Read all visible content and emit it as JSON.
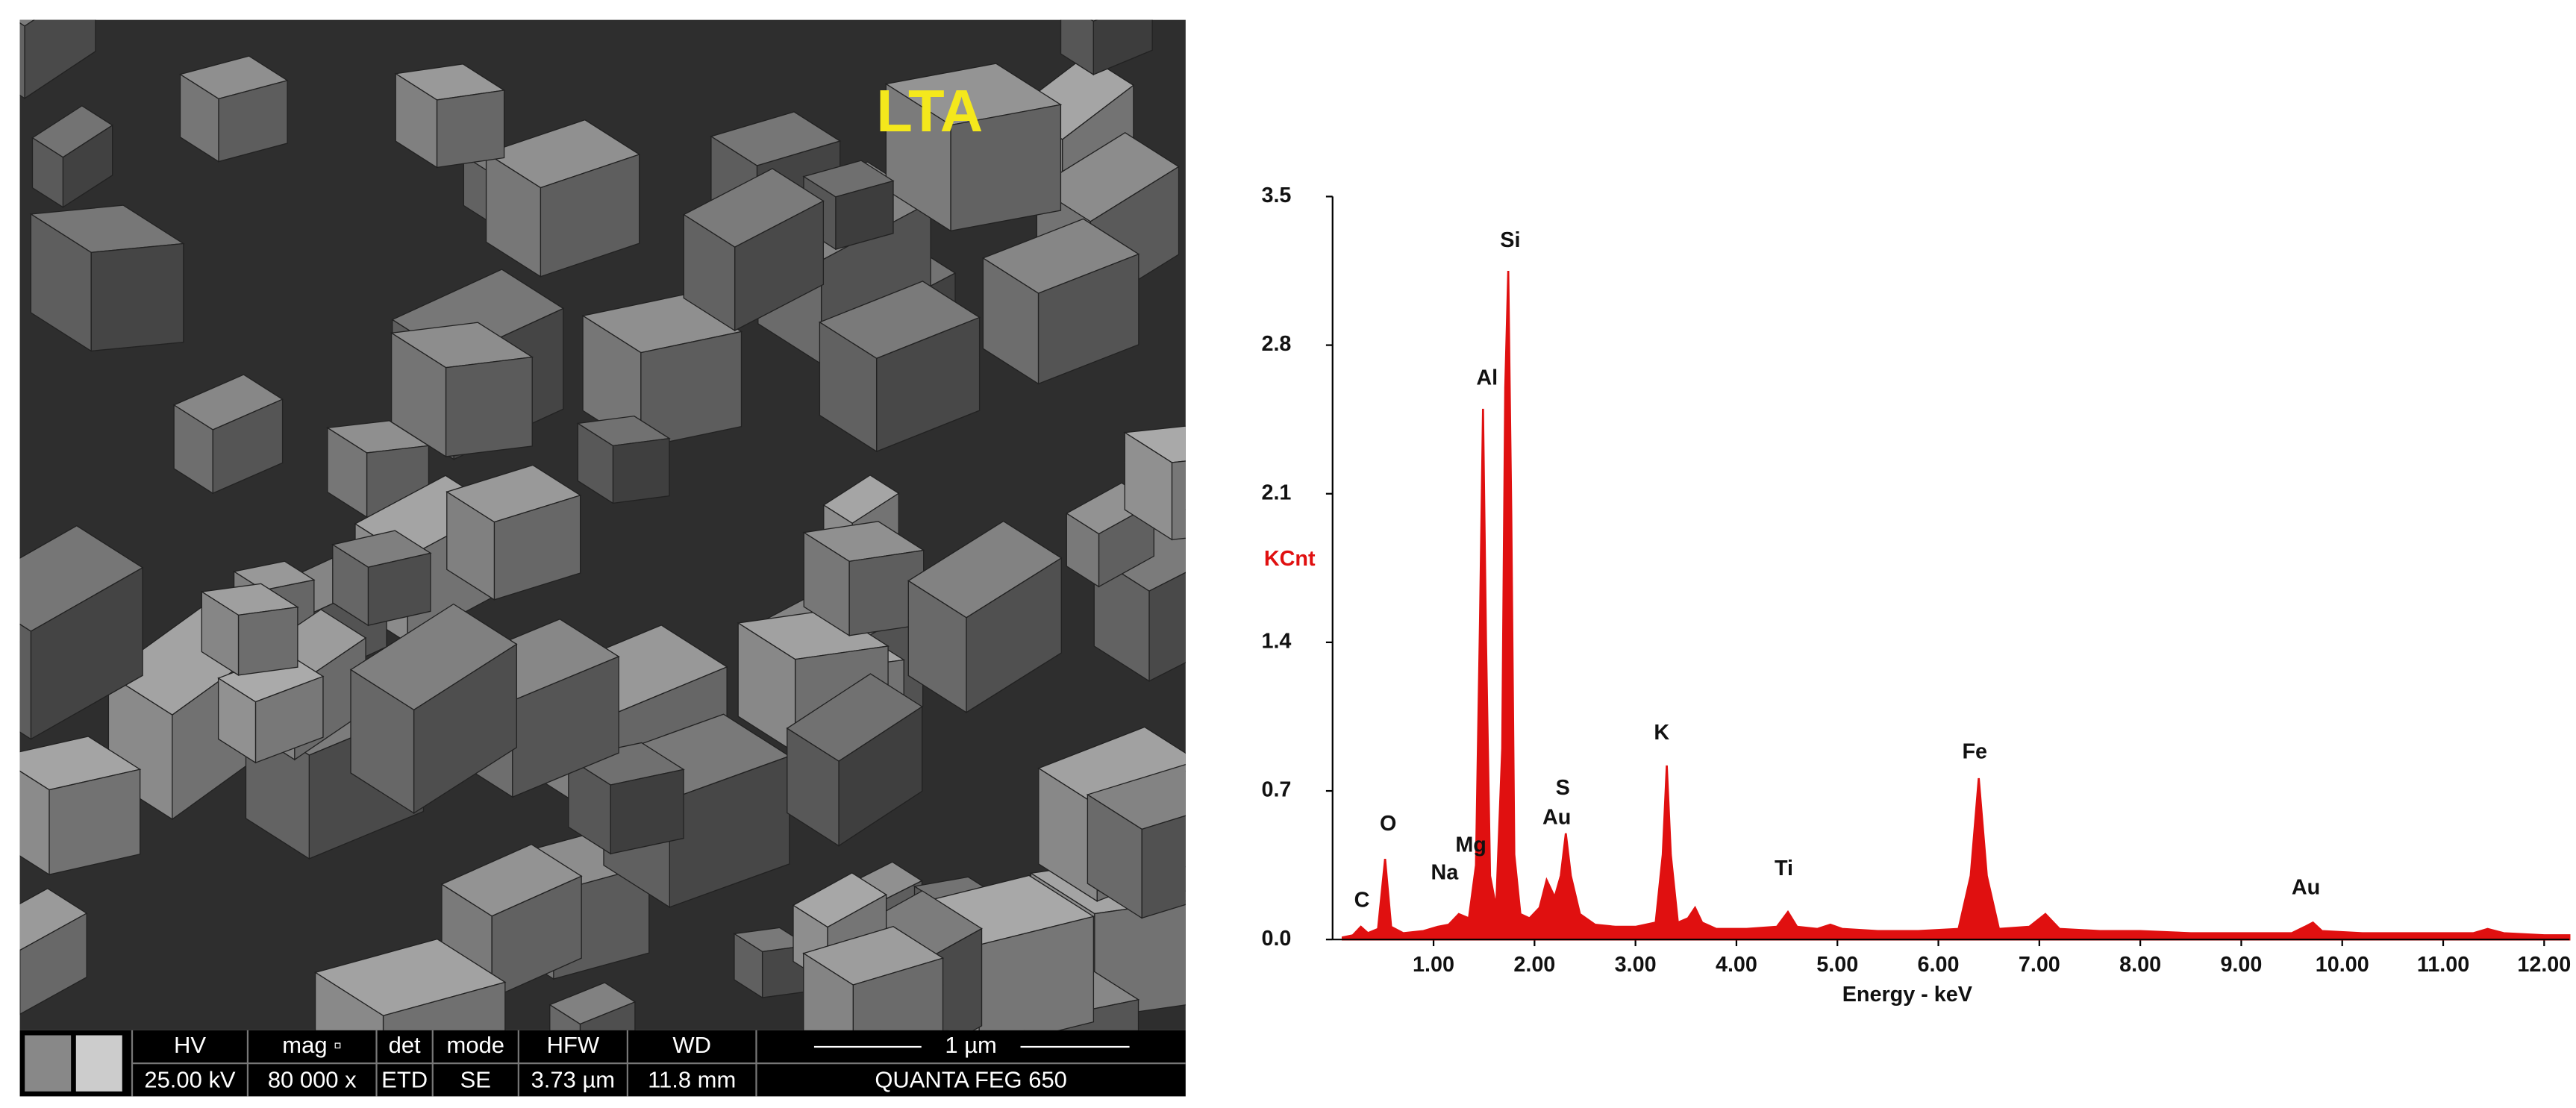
{
  "sem_image": {
    "label": "LTA",
    "info_bar": {
      "headers": [
        "HV",
        "mag ▫",
        "det",
        "mode",
        "HFW",
        "WD"
      ],
      "values": [
        "25.00 kV",
        "80 000 x",
        "ETD",
        "SE",
        "3.73 µm",
        "11.8 mm"
      ],
      "scale_bar": "1 µm",
      "instrument": "QUANTA FEG 650"
    }
  },
  "chart_data": {
    "type": "area",
    "ylabel": "KCnt",
    "xlabel": "Energy - keV",
    "color": "#e01010",
    "xlim": [
      0,
      12.25
    ],
    "ylim": [
      0,
      3.5
    ],
    "yticks": [
      {
        "value": 0,
        "label": "0.0"
      },
      0.7,
      1.4,
      2.1,
      2.8,
      3.5
    ],
    "xticks": [
      {
        "value": 1,
        "label": "1.00"
      },
      {
        "value": 2,
        "label": "2.00"
      },
      {
        "value": 3,
        "label": "3.00"
      },
      {
        "value": 4,
        "label": "4.00"
      },
      {
        "value": 5,
        "label": "5.00"
      },
      {
        "value": 6,
        "label": "6.00"
      },
      {
        "value": 7,
        "label": "7.00"
      },
      {
        "value": 8,
        "label": "8.00"
      },
      {
        "value": 9,
        "label": "9.00"
      },
      {
        "value": 10,
        "label": "10.00"
      },
      {
        "value": 11,
        "label": "11.00"
      },
      {
        "value": 12,
        "label": "12.00"
      }
    ],
    "x": [
      0.1,
      0.2,
      0.28,
      0.35,
      0.45,
      0.52,
      0.58,
      0.7,
      0.9,
      1.04,
      1.15,
      1.25,
      1.35,
      1.42,
      1.46,
      1.49,
      1.52,
      1.56,
      1.62,
      1.68,
      1.71,
      1.74,
      1.77,
      1.8,
      1.86,
      1.95,
      2.05,
      2.12,
      2.2,
      2.26,
      2.31,
      2.36,
      2.45,
      2.6,
      2.8,
      3.0,
      3.2,
      3.27,
      3.31,
      3.35,
      3.42,
      3.52,
      3.59,
      3.66,
      3.8,
      4.1,
      4.4,
      4.51,
      4.6,
      4.8,
      4.93,
      5.05,
      5.4,
      5.8,
      6.2,
      6.32,
      6.4,
      6.48,
      6.6,
      6.9,
      7.06,
      7.2,
      7.6,
      8.0,
      8.5,
      9.0,
      9.5,
      9.63,
      9.71,
      9.8,
      10.2,
      10.8,
      11.3,
      11.44,
      11.6,
      12.0,
      12.25
    ],
    "values": [
      0.01,
      0.02,
      0.06,
      0.03,
      0.05,
      0.38,
      0.06,
      0.03,
      0.04,
      0.06,
      0.07,
      0.12,
      0.1,
      0.35,
      1.5,
      2.5,
      1.4,
      0.3,
      0.15,
      0.9,
      2.6,
      3.15,
      2.0,
      0.4,
      0.12,
      0.1,
      0.15,
      0.28,
      0.2,
      0.3,
      0.5,
      0.3,
      0.12,
      0.07,
      0.06,
      0.06,
      0.08,
      0.4,
      0.82,
      0.4,
      0.08,
      0.1,
      0.15,
      0.08,
      0.05,
      0.05,
      0.06,
      0.13,
      0.06,
      0.05,
      0.07,
      0.05,
      0.04,
      0.04,
      0.05,
      0.3,
      0.76,
      0.3,
      0.05,
      0.06,
      0.12,
      0.05,
      0.04,
      0.04,
      0.03,
      0.03,
      0.03,
      0.06,
      0.08,
      0.04,
      0.03,
      0.03,
      0.03,
      0.05,
      0.03,
      0.02,
      0.02
    ],
    "annotations": [
      {
        "text": "C",
        "x": 0.29,
        "y": 0.18
      },
      {
        "text": "O",
        "x": 0.55,
        "y": 0.54
      },
      {
        "text": "Na",
        "x": 1.11,
        "y": 0.31
      },
      {
        "text": "Mg",
        "x": 1.37,
        "y": 0.44
      },
      {
        "text": "Al",
        "x": 1.53,
        "y": 2.64
      },
      {
        "text": "Si",
        "x": 1.76,
        "y": 3.29
      },
      {
        "text": "S",
        "x": 2.28,
        "y": 0.71
      },
      {
        "text": "Au",
        "x": 2.22,
        "y": 0.57
      },
      {
        "text": "K",
        "x": 3.26,
        "y": 0.97
      },
      {
        "text": "Ti",
        "x": 4.47,
        "y": 0.33
      },
      {
        "text": "Fe",
        "x": 6.36,
        "y": 0.88
      },
      {
        "text": "Au",
        "x": 9.64,
        "y": 0.24
      }
    ]
  }
}
